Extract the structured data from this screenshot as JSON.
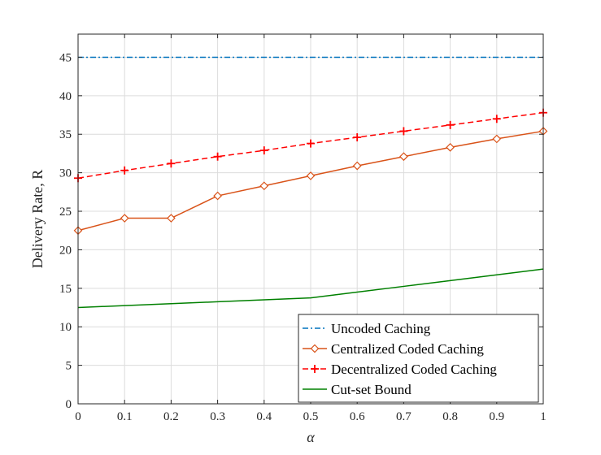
{
  "chart_data": {
    "type": "line",
    "xlabel": "α",
    "ylabel": "Delivery Rate, R",
    "xlim": [
      0,
      1
    ],
    "ylim": [
      0,
      48
    ],
    "xticks": [
      "0",
      "0.1",
      "0.2",
      "0.3",
      "0.4",
      "0.5",
      "0.6",
      "0.7",
      "0.8",
      "0.9",
      "1"
    ],
    "yticks": [
      "0",
      "5",
      "10",
      "15",
      "20",
      "25",
      "30",
      "35",
      "40",
      "45"
    ],
    "grid": true,
    "legend_position": "bottom-right",
    "x": [
      0,
      0.1,
      0.2,
      0.3,
      0.4,
      0.5,
      0.6,
      0.7,
      0.8,
      0.9,
      1.0
    ],
    "series": [
      {
        "name": "Uncoded Caching",
        "color": "#0072BD",
        "style": "dash-dot",
        "marker": "none",
        "values": [
          45,
          45,
          45,
          45,
          45,
          45,
          45,
          45,
          45,
          45,
          45
        ]
      },
      {
        "name": "Centralized Coded Caching",
        "color": "#D95319",
        "style": "solid",
        "marker": "diamond",
        "values": [
          22.5,
          24.1,
          24.1,
          27.0,
          28.3,
          29.6,
          30.9,
          32.1,
          33.3,
          34.4,
          35.4
        ]
      },
      {
        "name": "Decentralized Coded Caching",
        "color": "#FF0000",
        "style": "dashed",
        "marker": "plus",
        "values": [
          29.3,
          30.3,
          31.2,
          32.1,
          32.9,
          33.8,
          34.6,
          35.4,
          36.2,
          37.0,
          37.8
        ]
      },
      {
        "name": "Cut-set Bound",
        "color": "#008000",
        "style": "solid",
        "marker": "none",
        "values": [
          12.5,
          12.75,
          13.0,
          13.25,
          13.5,
          13.75,
          14.5,
          15.25,
          16.0,
          16.75,
          17.5
        ]
      }
    ]
  }
}
